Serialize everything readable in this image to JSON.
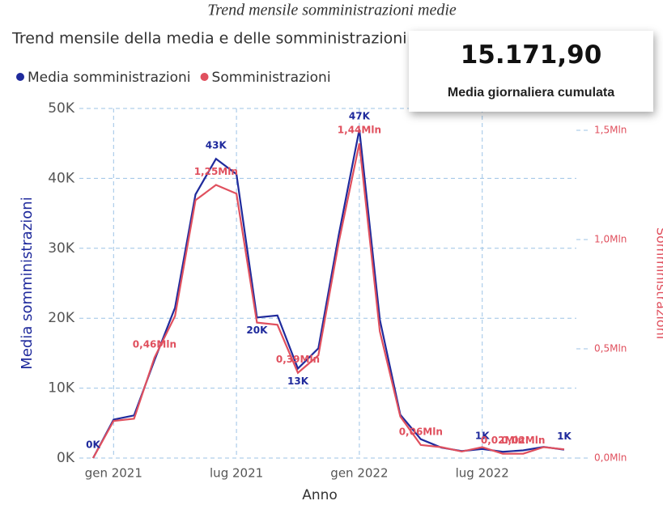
{
  "caption": "Trend mensile somministrazioni medie",
  "kpi_card": {
    "value": "15.171,90",
    "label": "Media giornaliera cumulata"
  },
  "chart_data": {
    "type": "line",
    "title": "Trend mensile della media e delle somministrazioni",
    "x_label": "Anno",
    "y_label": "Media somministrazioni",
    "y2_label": "Somministrazioni",
    "categories": [
      null,
      "gen 2021",
      null,
      null,
      null,
      null,
      null,
      "lug 2021",
      null,
      null,
      null,
      null,
      null,
      "gen 2022",
      null,
      null,
      null,
      null,
      null,
      "lug 2022",
      null,
      null,
      null,
      null
    ],
    "ylim": [
      0,
      50000
    ],
    "yticks": [
      {
        "value": 0,
        "label": "0K"
      },
      {
        "value": 10000,
        "label": "10K"
      },
      {
        "value": 20000,
        "label": "20K"
      },
      {
        "value": 30000,
        "label": "30K"
      },
      {
        "value": 40000,
        "label": "40K"
      },
      {
        "value": 50000,
        "label": "50K"
      }
    ],
    "y2lim": [
      0,
      1.6
    ],
    "y2ticks": [
      {
        "value": 0,
        "label": "0,0Mln"
      },
      {
        "value": 0.5,
        "label": "0,5Mln"
      },
      {
        "value": 1,
        "label": "1,0Mln"
      },
      {
        "value": 1.5,
        "label": "1,5Mln"
      }
    ],
    "grid": true,
    "legend": "top-left",
    "series": [
      {
        "name": "Media somministrazioni",
        "color": "#1f2a9c",
        "values": [
          0,
          5500,
          6100,
          14000,
          21500,
          37700,
          42800,
          40600,
          20100,
          20400,
          12800,
          15700,
          32000,
          47000,
          19800,
          6200,
          2700,
          1500,
          1000,
          1300,
          900,
          1100,
          1600,
          1200
        ],
        "value_labels": [
          "0K",
          null,
          null,
          null,
          null,
          null,
          "43K",
          null,
          "20K",
          null,
          "13K",
          null,
          null,
          "47K",
          null,
          null,
          null,
          null,
          null,
          "1K",
          null,
          null,
          null,
          "1K"
        ]
      },
      {
        "name": "Somministrazioni",
        "color": "#e0505e",
        "axis": "y2",
        "values": [
          0,
          0.17,
          0.18,
          0.46,
          0.65,
          1.18,
          1.25,
          1.21,
          0.62,
          0.61,
          0.39,
          0.47,
          0.99,
          1.44,
          0.58,
          0.19,
          0.06,
          0.05,
          0.03,
          0.05,
          0.02,
          0.02,
          0.05,
          0.04
        ],
        "value_labels": [
          null,
          null,
          null,
          "0,46Mln",
          null,
          null,
          "1,25Mln",
          null,
          null,
          null,
          "0,39Mln",
          null,
          null,
          "1,44Mln",
          null,
          null,
          "0,06Mln",
          null,
          null,
          null,
          "0,02Mln",
          "0,02Mln",
          null,
          null
        ]
      }
    ]
  }
}
